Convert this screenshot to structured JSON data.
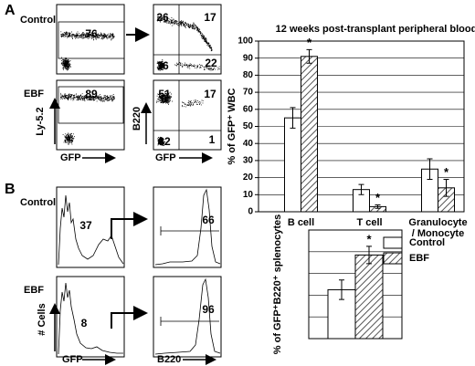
{
  "panel_labels": [
    "A",
    "B"
  ],
  "row_labels": [
    "Control",
    "EBF",
    "Control",
    "EBF"
  ],
  "axis_labels": [
    "Ly-5.2",
    "GFP",
    "B220",
    "GFP",
    "# Cells",
    "GFP",
    "B220"
  ],
  "flow_plots": [
    {
      "values": [
        76
      ]
    },
    {
      "values": [
        26,
        17,
        36,
        22
      ]
    },
    {
      "values": [
        89
      ]
    },
    {
      "values": [
        51,
        17,
        32,
        1
      ]
    },
    {
      "values": [
        37
      ]
    },
    {
      "values": [
        66
      ]
    },
    {
      "values": [
        8
      ]
    },
    {
      "values": [
        96
      ]
    }
  ],
  "chart_data": [
    {
      "type": "bar",
      "title": "12 weeks post-transplant peripheral blood",
      "y_label": "% of GFP⁺ WBC",
      "categories": [
        "B cell",
        "T cell",
        "Granulocyte\n/ Monocyte"
      ],
      "series": [
        {
          "name": "Control",
          "color": "#ffffff",
          "values": [
            55,
            13,
            25
          ],
          "errors": [
            6,
            3,
            6
          ]
        },
        {
          "name": "EBF",
          "color": "#555555",
          "pattern": "hatch",
          "values": [
            91,
            3,
            14
          ],
          "errors": [
            4,
            1,
            5
          ],
          "annotations": [
            "*",
            "*",
            "*"
          ]
        }
      ],
      "ylim": [
        0,
        100
      ],
      "yticks": [
        0,
        10,
        20,
        30,
        40,
        50,
        60,
        70,
        80,
        90,
        100
      ],
      "grid": true,
      "legend": "below-right"
    },
    {
      "type": "bar",
      "y_label": "% of GFP⁺B220⁺ splenocytes",
      "series": [
        {
          "color": "#ffffff",
          "values": [
            45
          ],
          "errors": [
            9
          ]
        },
        {
          "color": "#555555",
          "pattern": "hatch",
          "values": [
            77
          ],
          "errors": [
            8
          ],
          "annotations": [
            "*"
          ]
        }
      ],
      "ylim": [
        0,
        100
      ],
      "gridlines": [
        20,
        40,
        60,
        80,
        100
      ],
      "grid": true
    }
  ]
}
